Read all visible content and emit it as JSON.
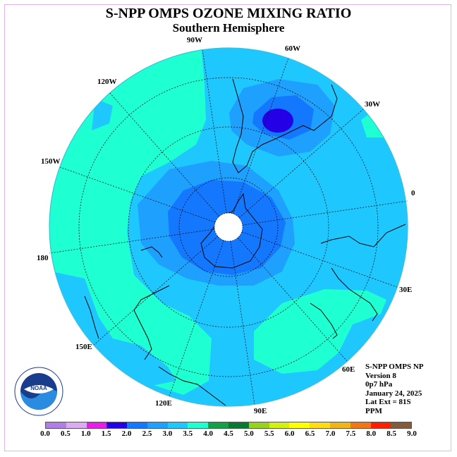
{
  "title": "S-NPP OMPS OZONE MIXING RATIO",
  "subtitle": "Southern Hemisphere",
  "lon_labels": [
    "90W",
    "60W",
    "30W",
    "0",
    "30E",
    "60E",
    "90E",
    "120E",
    "150E",
    "180",
    "150W",
    "120W"
  ],
  "info": {
    "instrument": "S-NPP OMPS NP",
    "version": "Version 8",
    "level": "0p7 hPa",
    "date": "January 24, 2025",
    "lat_ext": "Lat Ext = 81S",
    "units": "PPM"
  },
  "logo_text": "NOAA",
  "colorbar": {
    "ticks": [
      "0.0",
      "0.5",
      "1.0",
      "1.5",
      "2.0",
      "2.5",
      "3.0",
      "3.5",
      "4.0",
      "4.5",
      "5.0",
      "5.5",
      "6.0",
      "6.5",
      "7.0",
      "7.5",
      "8.0",
      "8.5",
      "9.0"
    ],
    "colors": [
      "#b07fe6",
      "#dcaaf0",
      "#e61ee6",
      "#2300e6",
      "#1478ff",
      "#1ea0ff",
      "#1ec8ff",
      "#1effd2",
      "#14a046",
      "#0a7832",
      "#96d21e",
      "#d2f014",
      "#ffff00",
      "#ffdc14",
      "#f0b414",
      "#f07814",
      "#ff1e00",
      "#825a3c"
    ]
  }
}
